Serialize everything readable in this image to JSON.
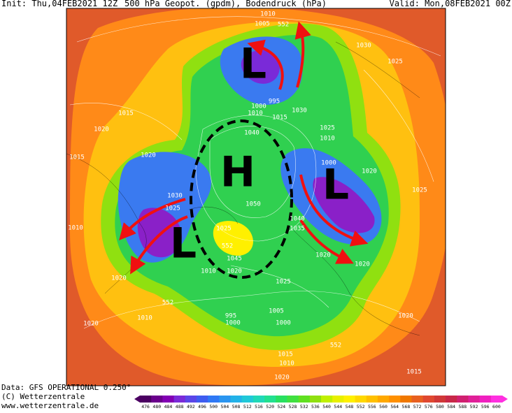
{
  "header": {
    "init": "Init: Thu,04FEB2021 12Z",
    "title": "500 hPa Geopot. (gpdm), Bodendruck (hPa)",
    "valid": "Valid: Mon,08FEB2021 00Z"
  },
  "map": {
    "pressure_letters": [
      "L",
      "H",
      "L",
      "L"
    ],
    "isobar_labels": [
      "1010",
      "1005",
      "552",
      "1030",
      "1025",
      "995",
      "1000",
      "1030",
      "1010",
      "1015",
      "1015",
      "1020",
      "1025",
      "1010",
      "1040",
      "1015",
      "1020",
      "1000",
      "1020",
      "1025",
      "1030",
      "1025",
      "1050",
      "1010",
      "1040",
      "1035",
      "1025",
      "552",
      "1045",
      "1020",
      "1020",
      "1010",
      "1020",
      "1025",
      "1020",
      "552",
      "1010",
      "995",
      "1000",
      "1005",
      "1000",
      "1020",
      "1020",
      "552",
      "1015",
      "1010",
      "1020",
      "1015"
    ]
  },
  "colorbar": {
    "labels": [
      476,
      480,
      484,
      488,
      492,
      496,
      500,
      504,
      508,
      512,
      516,
      520,
      524,
      528,
      532,
      536,
      540,
      544,
      548,
      552,
      556,
      560,
      564,
      568,
      572,
      576,
      580,
      584,
      588,
      592,
      596,
      600
    ],
    "colors": [
      "#4b0062",
      "#6a008c",
      "#8200b4",
      "#7a2bd8",
      "#5a46e8",
      "#3e5cf0",
      "#2f78f5",
      "#2a95f0",
      "#22b2e8",
      "#20c8d8",
      "#20d8b8",
      "#22e090",
      "#28e060",
      "#40e040",
      "#60e020",
      "#90e010",
      "#c0f000",
      "#e8f000",
      "#fff000",
      "#ffd800",
      "#ffc000",
      "#ffa800",
      "#ff9000",
      "#f07800",
      "#e86020",
      "#e04830",
      "#d03838",
      "#c82848",
      "#d02070",
      "#e02098",
      "#f020c0",
      "#ff30e0"
    ]
  },
  "footer": {
    "data": "Data: GFS OPERATIONAL 0.250°",
    "copyright": "(C) Wetterzentrale",
    "url": "www.wetterzentrale.de"
  }
}
